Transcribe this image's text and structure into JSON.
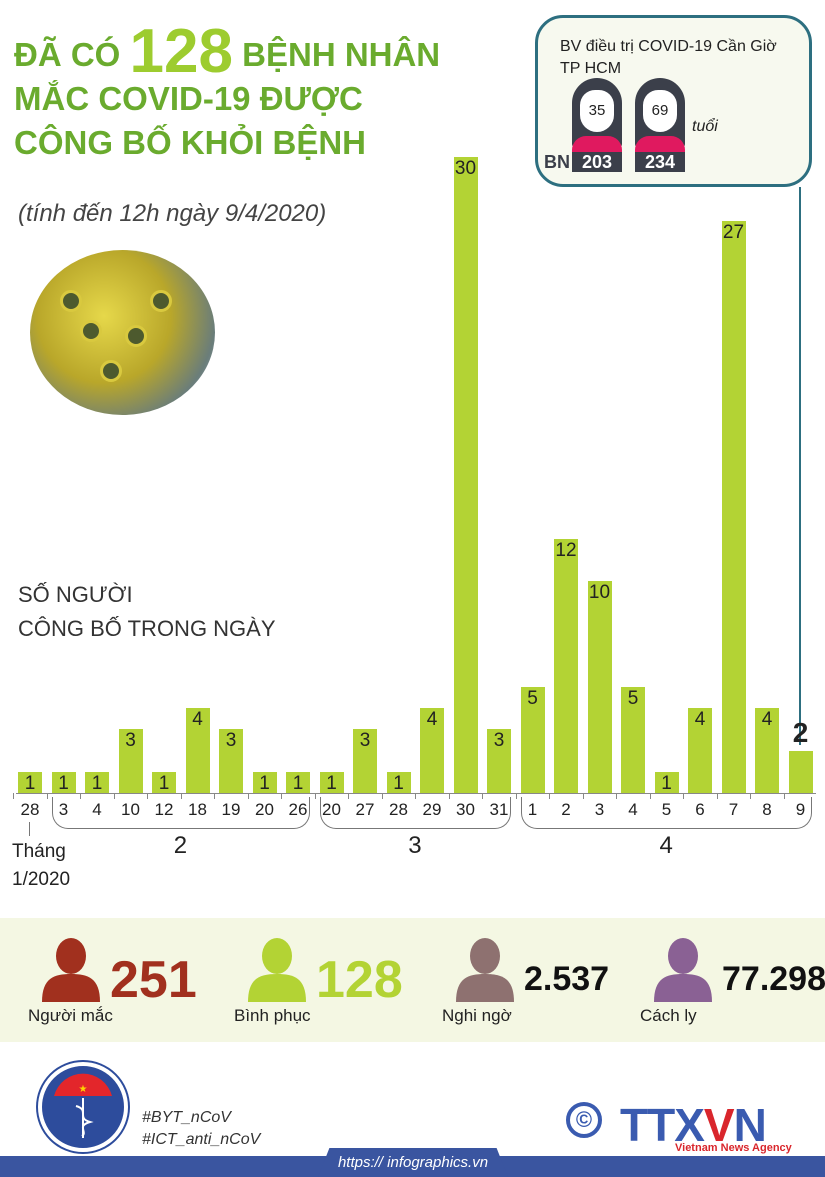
{
  "header": {
    "pre": "ĐÃ CÓ",
    "count": "128",
    "post": "BỆNH NHÂN",
    "line2": "MẮC COVID-19 ĐƯỢC",
    "line3": "CÔNG BỐ KHỎI BỆNH",
    "subtitle": "(tính đến 12h ngày 9/4/2020)"
  },
  "callout": {
    "title1": "BV điều trị COVID-19 Cần Giờ",
    "title2": "TP HCM",
    "bn": "BN",
    "patients": [
      {
        "id": "203",
        "age": "35"
      },
      {
        "id": "234",
        "age": "69"
      }
    ],
    "age_unit": "tuổi"
  },
  "chart_data": {
    "type": "bar",
    "title": "SỐ NGƯỜI CÔNG BỐ TRONG NGÀY",
    "title_line1": "SỐ NGƯỜI",
    "title_line2": "CÔNG BỐ TRONG NGÀY",
    "categories": [
      "28",
      "3",
      "4",
      "10",
      "12",
      "18",
      "19",
      "20",
      "26",
      "20",
      "27",
      "28",
      "29",
      "30",
      "31",
      "1",
      "2",
      "3",
      "4",
      "5",
      "6",
      "7",
      "8",
      "9"
    ],
    "values": [
      1,
      1,
      1,
      3,
      1,
      4,
      3,
      1,
      1,
      1,
      3,
      1,
      4,
      30,
      3,
      5,
      12,
      10,
      5,
      1,
      4,
      27,
      4,
      2
    ],
    "months": [
      {
        "label": "Tháng",
        "label2": "1/2020",
        "start": 0,
        "end": 0
      },
      {
        "label": "2",
        "start": 1,
        "end": 8
      },
      {
        "label": "3",
        "start": 9,
        "end": 14
      },
      {
        "label": "4",
        "start": 15,
        "end": 23
      }
    ],
    "highlight_index": 23,
    "bar_color": "#b3d334",
    "ylim": [
      0,
      30
    ]
  },
  "stats": [
    {
      "value": "251",
      "label": "Người mắc",
      "color": "#a1301e"
    },
    {
      "value": "128",
      "label": "Bình phục",
      "color": "#b3d334"
    },
    {
      "value": "2.537",
      "label": "Nghi ngờ",
      "color": "#8e7170"
    },
    {
      "value": "77.298",
      "label": "Cách ly",
      "color": "#8a6194"
    }
  ],
  "footer": {
    "tag1": "#BYT_nCoV",
    "tag2": "#ICT_anti_nCoV",
    "url": "https:// infographics.vn",
    "logo_left": "BỘ Y TẾ MINISTRY OF HEALTH",
    "logo_right": "TTXVN",
    "logo_right_sub": "Vietnam News Agency",
    "copyright": "©"
  }
}
